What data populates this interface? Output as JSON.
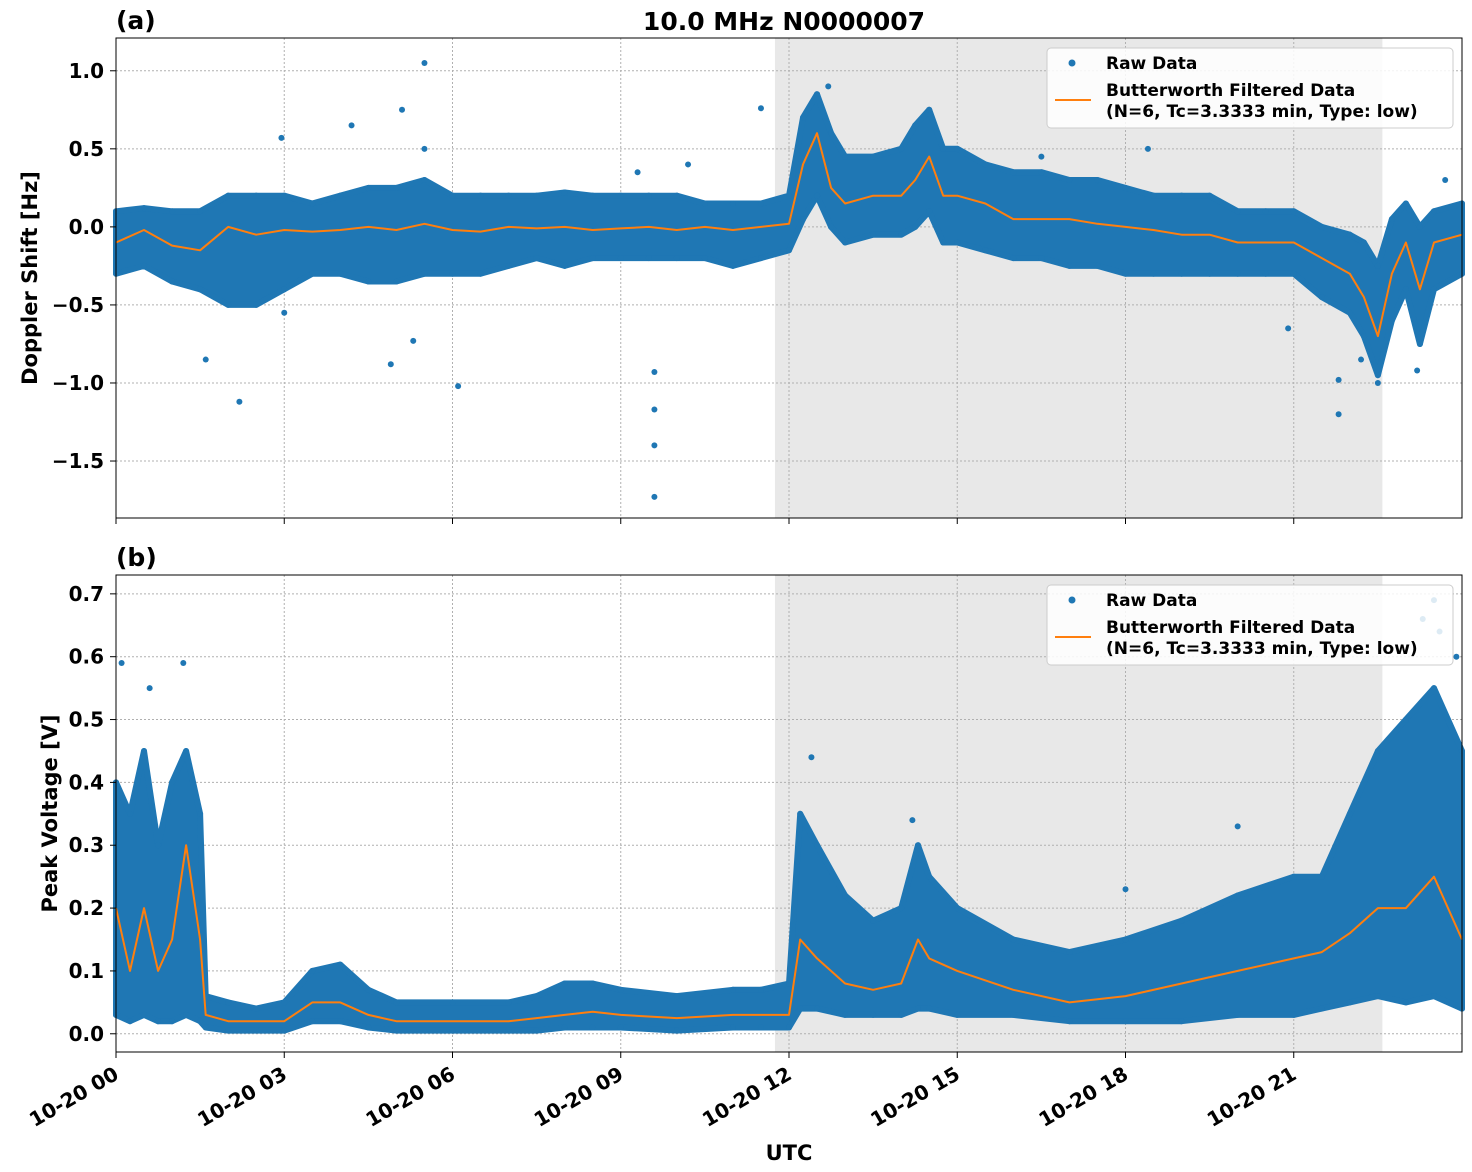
{
  "figure": {
    "title": "10.0 MHz N0000007",
    "xlabel": "UTC",
    "x_tick_labels": [
      "10-20 00",
      "10-20 03",
      "10-20 06",
      "10-20 09",
      "10-20 12",
      "10-20 15",
      "10-20 18",
      "10-20 21"
    ],
    "x_tick_hours": [
      0,
      3,
      6,
      9,
      12,
      15,
      18,
      21
    ],
    "xlim_hours": [
      0,
      24
    ],
    "shaded_span_hours": [
      11.75,
      22.58
    ],
    "colors": {
      "raw": "#1f77b4",
      "filtered": "#ff7f0e",
      "shade": "#e8e8e8",
      "grid": "#b0b0b0"
    }
  },
  "legend": {
    "raw_label": "Raw Data",
    "filtered_label_1": "Butterworth Filtered Data",
    "filtered_label_2": "(N=6, Tc=3.3333 min, Type: low)",
    "placement": "top-right"
  },
  "chart_data": [
    {
      "type": "scatter+line",
      "panel_label": "(a)",
      "ylabel": "Doppler Shift [Hz]",
      "ylim": [
        -1.865,
        1.21
      ],
      "y_ticks": [
        -1.5,
        -1.0,
        -0.5,
        0.0,
        0.5,
        1.0
      ],
      "y_tick_labels": [
        "−1.5",
        "−1.0",
        "−0.5",
        "0.0",
        "0.5",
        "1.0"
      ],
      "grid": true,
      "x_hours": [
        0,
        0.5,
        1,
        1.5,
        2,
        2.5,
        3,
        3.5,
        4,
        4.5,
        5,
        5.5,
        6,
        6.5,
        7,
        7.5,
        8,
        8.5,
        9,
        9.5,
        10,
        10.5,
        11,
        11.5,
        12,
        12.25,
        12.5,
        12.75,
        13,
        13.5,
        14,
        14.25,
        14.5,
        14.75,
        15,
        15.5,
        16,
        16.5,
        17,
        17.5,
        18,
        18.5,
        19,
        19.5,
        20,
        20.5,
        21,
        21.5,
        22,
        22.25,
        22.5,
        22.75,
        23,
        23.25,
        23.5,
        24
      ],
      "filtered": [
        -0.1,
        -0.02,
        -0.12,
        -0.15,
        0,
        -0.05,
        -0.02,
        -0.03,
        -0.02,
        0,
        -0.02,
        0.02,
        -0.02,
        -0.03,
        0,
        -0.01,
        0,
        -0.02,
        -0.01,
        0,
        -0.02,
        0,
        -0.02,
        0,
        0.02,
        0.4,
        0.6,
        0.25,
        0.15,
        0.2,
        0.2,
        0.3,
        0.45,
        0.2,
        0.2,
        0.15,
        0.05,
        0.05,
        0.05,
        0.02,
        0,
        -0.02,
        -0.05,
        -0.05,
        -0.1,
        -0.1,
        -0.1,
        -0.2,
        -0.3,
        -0.45,
        -0.7,
        -0.3,
        -0.1,
        -0.4,
        -0.1,
        -0.05
      ],
      "raw_upper": [
        0.1,
        0.12,
        0.1,
        0.1,
        0.2,
        0.2,
        0.2,
        0.15,
        0.2,
        0.25,
        0.25,
        0.3,
        0.2,
        0.2,
        0.2,
        0.2,
        0.22,
        0.2,
        0.2,
        0.2,
        0.2,
        0.15,
        0.15,
        0.15,
        0.2,
        0.7,
        0.85,
        0.6,
        0.45,
        0.45,
        0.5,
        0.65,
        0.75,
        0.5,
        0.5,
        0.4,
        0.35,
        0.35,
        0.3,
        0.3,
        0.25,
        0.2,
        0.2,
        0.2,
        0.1,
        0.1,
        0.1,
        0.0,
        -0.05,
        -0.1,
        -0.25,
        0.05,
        0.15,
        0.0,
        0.1,
        0.15
      ],
      "raw_lower": [
        -0.3,
        -0.25,
        -0.35,
        -0.4,
        -0.5,
        -0.5,
        -0.4,
        -0.3,
        -0.3,
        -0.35,
        -0.35,
        -0.3,
        -0.3,
        -0.3,
        -0.25,
        -0.2,
        -0.25,
        -0.2,
        -0.2,
        -0.2,
        -0.2,
        -0.2,
        -0.25,
        -0.2,
        -0.15,
        0.05,
        0.2,
        0.0,
        -0.1,
        -0.05,
        -0.05,
        0.0,
        0.1,
        -0.1,
        -0.1,
        -0.15,
        -0.2,
        -0.2,
        -0.25,
        -0.25,
        -0.3,
        -0.3,
        -0.3,
        -0.3,
        -0.3,
        -0.3,
        -0.3,
        -0.45,
        -0.55,
        -0.7,
        -0.95,
        -0.6,
        -0.4,
        -0.75,
        -0.4,
        -0.3
      ],
      "raw_outliers": [
        [
          2.2,
          -1.12
        ],
        [
          5.5,
          1.05
        ],
        [
          9.6,
          -1.73
        ],
        [
          9.6,
          -1.4
        ],
        [
          9.6,
          -1.17
        ],
        [
          9.6,
          -0.93
        ],
        [
          6.1,
          -1.02
        ],
        [
          1.6,
          -0.85
        ],
        [
          4.2,
          0.65
        ],
        [
          5.1,
          0.75
        ],
        [
          5.5,
          0.5
        ],
        [
          2.95,
          0.57
        ],
        [
          11.5,
          0.76
        ],
        [
          12.7,
          0.9
        ],
        [
          18.4,
          0.5
        ],
        [
          21.8,
          -1.2
        ],
        [
          21.8,
          -0.98
        ],
        [
          22.5,
          -1.0
        ],
        [
          22.2,
          -0.85
        ],
        [
          23.2,
          -0.92
        ],
        [
          10.2,
          0.4
        ],
        [
          9.3,
          0.35
        ],
        [
          4.9,
          -0.88
        ],
        [
          5.3,
          -0.73
        ],
        [
          3.0,
          -0.55
        ],
        [
          16.5,
          0.45
        ],
        [
          20.9,
          -0.65
        ],
        [
          23.7,
          0.3
        ]
      ]
    },
    {
      "type": "scatter+line",
      "panel_label": "(b)",
      "ylabel": "Peak Voltage [V]",
      "ylim": [
        -0.029,
        0.73
      ],
      "y_ticks": [
        0.0,
        0.1,
        0.2,
        0.3,
        0.4,
        0.5,
        0.6,
        0.7
      ],
      "y_tick_labels": [
        "0.0",
        "0.1",
        "0.2",
        "0.3",
        "0.4",
        "0.5",
        "0.6",
        "0.7"
      ],
      "grid": true,
      "x_hours": [
        0,
        0.25,
        0.5,
        0.75,
        1,
        1.25,
        1.5,
        1.6,
        2,
        2.5,
        3,
        3.5,
        4,
        4.5,
        5,
        6,
        7,
        7.5,
        8,
        8.5,
        9,
        10,
        11,
        11.5,
        12,
        12.2,
        12.5,
        13,
        13.5,
        14,
        14.3,
        14.5,
        15,
        16,
        17,
        18,
        19,
        20,
        21,
        21.5,
        22,
        22.5,
        23,
        23.5,
        24
      ],
      "filtered": [
        0.2,
        0.1,
        0.2,
        0.1,
        0.15,
        0.3,
        0.15,
        0.03,
        0.02,
        0.02,
        0.02,
        0.05,
        0.05,
        0.03,
        0.02,
        0.02,
        0.02,
        0.025,
        0.03,
        0.035,
        0.03,
        0.025,
        0.03,
        0.03,
        0.03,
        0.15,
        0.12,
        0.08,
        0.07,
        0.08,
        0.15,
        0.12,
        0.1,
        0.07,
        0.05,
        0.06,
        0.08,
        0.1,
        0.12,
        0.13,
        0.16,
        0.2,
        0.2,
        0.25,
        0.15
      ],
      "raw_upper": [
        0.4,
        0.35,
        0.45,
        0.3,
        0.4,
        0.45,
        0.35,
        0.06,
        0.05,
        0.04,
        0.05,
        0.1,
        0.11,
        0.07,
        0.05,
        0.05,
        0.05,
        0.06,
        0.08,
        0.08,
        0.07,
        0.06,
        0.07,
        0.07,
        0.08,
        0.35,
        0.3,
        0.22,
        0.18,
        0.2,
        0.3,
        0.25,
        0.2,
        0.15,
        0.13,
        0.15,
        0.18,
        0.22,
        0.25,
        0.25,
        0.35,
        0.45,
        0.5,
        0.55,
        0.45
      ],
      "raw_lower": [
        0.03,
        0.02,
        0.03,
        0.02,
        0.02,
        0.03,
        0.02,
        0.01,
        0.005,
        0.005,
        0.005,
        0.02,
        0.02,
        0.01,
        0.005,
        0.005,
        0.005,
        0.005,
        0.01,
        0.01,
        0.01,
        0.005,
        0.01,
        0.01,
        0.01,
        0.04,
        0.04,
        0.03,
        0.03,
        0.03,
        0.04,
        0.04,
        0.03,
        0.03,
        0.02,
        0.02,
        0.02,
        0.03,
        0.03,
        0.04,
        0.05,
        0.06,
        0.05,
        0.06,
        0.04
      ],
      "raw_outliers": [
        [
          0.1,
          0.59
        ],
        [
          0.6,
          0.55
        ],
        [
          1.2,
          0.59
        ],
        [
          12.4,
          0.44
        ],
        [
          14.2,
          0.34
        ],
        [
          23.5,
          0.69
        ],
        [
          23.3,
          0.66
        ],
        [
          23.6,
          0.64
        ],
        [
          20,
          0.33
        ],
        [
          18,
          0.23
        ],
        [
          23.9,
          0.6
        ]
      ]
    }
  ]
}
